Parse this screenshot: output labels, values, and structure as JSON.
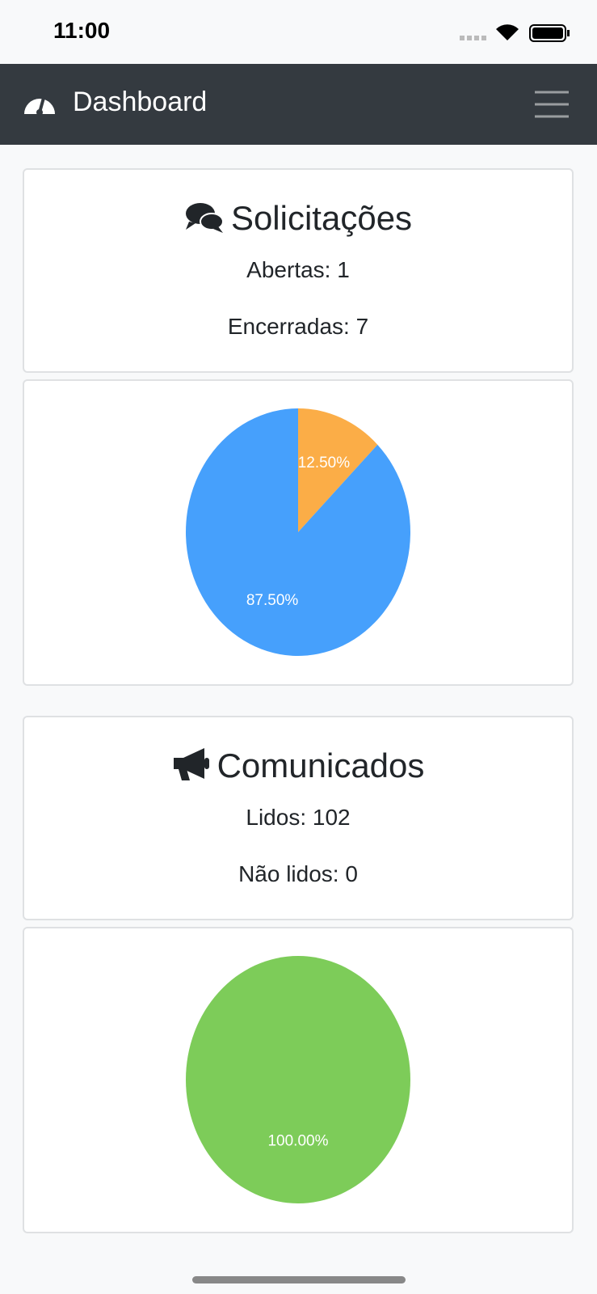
{
  "status_bar": {
    "time": "11:00"
  },
  "navbar": {
    "title": "Dashboard"
  },
  "cards": [
    {
      "title": "Solicitações",
      "lines": [
        "Abertas: 1",
        "Encerradas: 7"
      ]
    },
    {
      "title": "Comunicados",
      "lines": [
        "Lidos: 102",
        "Não lidos: 0"
      ]
    }
  ],
  "chart_data": [
    {
      "type": "pie",
      "values": [
        12.5,
        87.5
      ],
      "value_labels": [
        "12.50%",
        "87.50%"
      ],
      "colors": [
        "#fbad47",
        "#46a0fc"
      ]
    },
    {
      "type": "pie",
      "values": [
        100
      ],
      "value_labels": [
        "100.00%"
      ],
      "colors": [
        "#7dcc59"
      ]
    }
  ]
}
